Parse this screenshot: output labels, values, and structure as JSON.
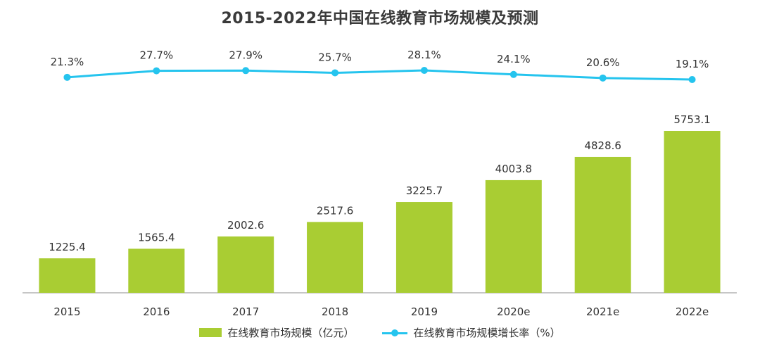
{
  "colors": {
    "bar": "#a9cd33",
    "line": "#25c4ee",
    "axis": "#8c8c8c",
    "text": "#333333"
  },
  "chart_data": {
    "type": "bar+line",
    "title": "2015-2022年中国在线教育市场规模及预测",
    "categories": [
      "2015",
      "2016",
      "2017",
      "2018",
      "2019",
      "2020e",
      "2021e",
      "2022e"
    ],
    "series": [
      {
        "name": "在线教育市场规模（亿元）",
        "type": "bar",
        "values": [
          1225.4,
          1565.4,
          2002.6,
          2517.6,
          3225.7,
          4003.8,
          4828.6,
          5753.1
        ],
        "labels": [
          "1225.4",
          "1565.4",
          "2002.6",
          "2517.6",
          "3225.7",
          "4003.8",
          "4828.6",
          "5753.1"
        ]
      },
      {
        "name": "在线教育市场规模增长率（%）",
        "type": "line",
        "values": [
          21.3,
          27.7,
          27.9,
          25.7,
          28.1,
          24.1,
          20.6,
          19.1
        ],
        "labels": [
          "21.3%",
          "27.7%",
          "27.9%",
          "25.7%",
          "28.1%",
          "24.1%",
          "20.6%",
          "19.1%"
        ]
      }
    ],
    "legend_position": "bottom-center",
    "grid": false
  }
}
